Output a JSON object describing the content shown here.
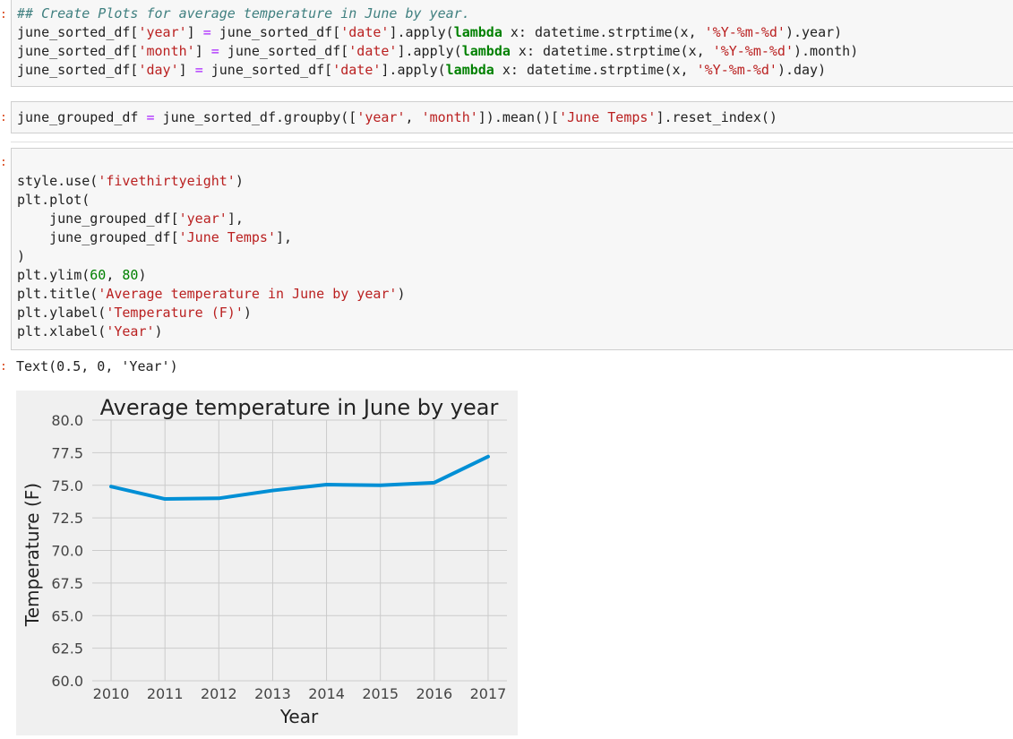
{
  "cells": [
    {
      "prompt": ":",
      "lines": [
        [
          {
            "t": "## Create Plots for average temperature in June by year.",
            "c": "cm"
          }
        ],
        [
          {
            "t": "june_sorted_df["
          },
          {
            "t": "'year'",
            "c": "s"
          },
          {
            "t": "] "
          },
          {
            "t": "=",
            "c": "op"
          },
          {
            "t": " june_sorted_df["
          },
          {
            "t": "'date'",
            "c": "s"
          },
          {
            "t": "].apply("
          },
          {
            "t": "lambda",
            "c": "kw"
          },
          {
            "t": " x: datetime.strptime(x, "
          },
          {
            "t": "'%Y-%m-%d'",
            "c": "s"
          },
          {
            "t": ").year)"
          }
        ],
        [
          {
            "t": "june_sorted_df["
          },
          {
            "t": "'month'",
            "c": "s"
          },
          {
            "t": "] "
          },
          {
            "t": "=",
            "c": "op"
          },
          {
            "t": " june_sorted_df["
          },
          {
            "t": "'date'",
            "c": "s"
          },
          {
            "t": "].apply("
          },
          {
            "t": "lambda",
            "c": "kw"
          },
          {
            "t": " x: datetime.strptime(x, "
          },
          {
            "t": "'%Y-%m-%d'",
            "c": "s"
          },
          {
            "t": ").month)"
          }
        ],
        [
          {
            "t": "june_sorted_df["
          },
          {
            "t": "'day'",
            "c": "s"
          },
          {
            "t": "] "
          },
          {
            "t": "=",
            "c": "op"
          },
          {
            "t": " june_sorted_df["
          },
          {
            "t": "'date'",
            "c": "s"
          },
          {
            "t": "].apply("
          },
          {
            "t": "lambda",
            "c": "kw"
          },
          {
            "t": " x: datetime.strptime(x, "
          },
          {
            "t": "'%Y-%m-%d'",
            "c": "s"
          },
          {
            "t": ").day)"
          }
        ]
      ]
    },
    {
      "prompt": ":",
      "lines": [
        [
          {
            "t": "june_grouped_df "
          },
          {
            "t": "=",
            "c": "op"
          },
          {
            "t": " june_sorted_df.groupby(["
          },
          {
            "t": "'year'",
            "c": "s"
          },
          {
            "t": ", "
          },
          {
            "t": "'month'",
            "c": "s"
          },
          {
            "t": "]).mean()["
          },
          {
            "t": "'June Temps'",
            "c": "s"
          },
          {
            "t": "].reset_index()"
          }
        ]
      ]
    },
    {
      "prompt": ":",
      "lines": [
        [
          {
            "t": ""
          }
        ],
        [
          {
            "t": "style.use("
          },
          {
            "t": "'fivethirtyeight'",
            "c": "s"
          },
          {
            "t": ")"
          }
        ],
        [
          {
            "t": "plt.plot("
          }
        ],
        [
          {
            "t": "    june_grouped_df["
          },
          {
            "t": "'year'",
            "c": "s"
          },
          {
            "t": "],"
          }
        ],
        [
          {
            "t": "    june_grouped_df["
          },
          {
            "t": "'June Temps'",
            "c": "s"
          },
          {
            "t": "],"
          }
        ],
        [
          {
            "t": ")"
          }
        ],
        [
          {
            "t": "plt.ylim("
          },
          {
            "t": "60",
            "c": "nm"
          },
          {
            "t": ", "
          },
          {
            "t": "80",
            "c": "nm"
          },
          {
            "t": ")"
          }
        ],
        [
          {
            "t": "plt.title("
          },
          {
            "t": "'Average temperature in June by year'",
            "c": "s"
          },
          {
            "t": ")"
          }
        ],
        [
          {
            "t": "plt.ylabel("
          },
          {
            "t": "'Temperature (F)'",
            "c": "s"
          },
          {
            "t": ")"
          }
        ],
        [
          {
            "t": "plt.xlabel("
          },
          {
            "t": "'Year'",
            "c": "s"
          },
          {
            "t": ")"
          }
        ]
      ]
    }
  ],
  "output": {
    "prompt": ":",
    "text": "Text(0.5, 0, 'Year')"
  },
  "chart_data": {
    "type": "line",
    "title": "Average temperature in June by year",
    "xlabel": "Year",
    "ylabel": "Temperature (F)",
    "x": [
      2010,
      2011,
      2012,
      2013,
      2014,
      2015,
      2016,
      2017
    ],
    "y": [
      74.9,
      73.95,
      74.0,
      74.6,
      75.05,
      75.0,
      75.2,
      77.2
    ],
    "ylim": [
      60,
      80
    ],
    "xlim": [
      2009.65,
      2017.35
    ],
    "yticks": [
      "60.0",
      "62.5",
      "65.0",
      "67.5",
      "70.0",
      "72.5",
      "75.0",
      "77.5",
      "80.0"
    ],
    "ytick_values": [
      60,
      62.5,
      65,
      67.5,
      70,
      72.5,
      75,
      77.5,
      80
    ],
    "xticks": [
      "2010",
      "2011",
      "2012",
      "2013",
      "2014",
      "2015",
      "2016",
      "2017"
    ],
    "grid": true,
    "line_color": "#008fd5",
    "background_color": "#f0f0f0",
    "style": "fivethirtyeight"
  }
}
